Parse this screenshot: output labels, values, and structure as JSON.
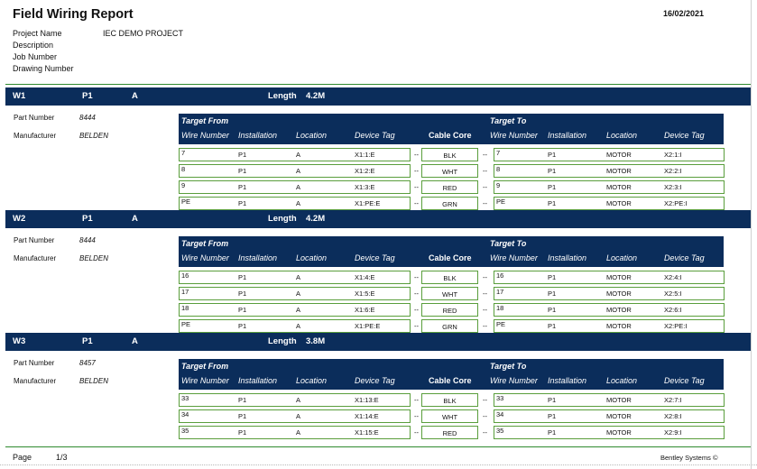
{
  "report": {
    "title": "Field Wiring Report",
    "date": "16/02/2021"
  },
  "meta": [
    {
      "label": "Project Name",
      "value": "IEC DEMO PROJECT"
    },
    {
      "label": "Description",
      "value": ""
    },
    {
      "label": "Job Number",
      "value": ""
    },
    {
      "label": "Drawing Number",
      "value": ""
    }
  ],
  "labels": {
    "part_number": "Part Number",
    "manufacturer": "Manufacturer",
    "length": "Length",
    "target_from": "Target From",
    "target_to": "Target To",
    "wire_number": "Wire Number",
    "installation": "Installation",
    "location": "Location",
    "device_tag": "Device Tag",
    "cable_core": "Cable Core",
    "separator": "--"
  },
  "sections": [
    {
      "wire": "W1",
      "installation": "P1",
      "location": "A",
      "length": "4.2M",
      "part_number": "8444",
      "manufacturer": "BELDEN",
      "rows": [
        {
          "from_wire": "7",
          "from_inst": "P1",
          "from_loc": "A",
          "from_tag": "X1:1:E",
          "core": "BLK",
          "to_wire": "7",
          "to_inst": "P1",
          "to_loc": "MOTOR",
          "to_tag": "X2:1:I"
        },
        {
          "from_wire": "8",
          "from_inst": "P1",
          "from_loc": "A",
          "from_tag": "X1:2:E",
          "core": "WHT",
          "to_wire": "8",
          "to_inst": "P1",
          "to_loc": "MOTOR",
          "to_tag": "X2:2:I"
        },
        {
          "from_wire": "9",
          "from_inst": "P1",
          "from_loc": "A",
          "from_tag": "X1:3:E",
          "core": "RED",
          "to_wire": "9",
          "to_inst": "P1",
          "to_loc": "MOTOR",
          "to_tag": "X2:3:I"
        },
        {
          "from_wire": "PE",
          "from_inst": "P1",
          "from_loc": "A",
          "from_tag": "X1:PE:E",
          "core": "GRN",
          "to_wire": "PE",
          "to_inst": "P1",
          "to_loc": "MOTOR",
          "to_tag": "X2:PE:I"
        }
      ]
    },
    {
      "wire": "W2",
      "installation": "P1",
      "location": "A",
      "length": "4.2M",
      "part_number": "8444",
      "manufacturer": "BELDEN",
      "rows": [
        {
          "from_wire": "16",
          "from_inst": "P1",
          "from_loc": "A",
          "from_tag": "X1:4:E",
          "core": "BLK",
          "to_wire": "16",
          "to_inst": "P1",
          "to_loc": "MOTOR",
          "to_tag": "X2:4:I"
        },
        {
          "from_wire": "17",
          "from_inst": "P1",
          "from_loc": "A",
          "from_tag": "X1:5:E",
          "core": "WHT",
          "to_wire": "17",
          "to_inst": "P1",
          "to_loc": "MOTOR",
          "to_tag": "X2:5:I"
        },
        {
          "from_wire": "18",
          "from_inst": "P1",
          "from_loc": "A",
          "from_tag": "X1:6:E",
          "core": "RED",
          "to_wire": "18",
          "to_inst": "P1",
          "to_loc": "MOTOR",
          "to_tag": "X2:6:I"
        },
        {
          "from_wire": "PE",
          "from_inst": "P1",
          "from_loc": "A",
          "from_tag": "X1:PE:E",
          "core": "GRN",
          "to_wire": "PE",
          "to_inst": "P1",
          "to_loc": "MOTOR",
          "to_tag": "X2:PE:I"
        }
      ]
    },
    {
      "wire": "W3",
      "installation": "P1",
      "location": "A",
      "length": "3.8M",
      "part_number": "8457",
      "manufacturer": "BELDEN",
      "rows": [
        {
          "from_wire": "33",
          "from_inst": "P1",
          "from_loc": "A",
          "from_tag": "X1:13:E",
          "core": "BLK",
          "to_wire": "33",
          "to_inst": "P1",
          "to_loc": "MOTOR",
          "to_tag": "X2:7:I"
        },
        {
          "from_wire": "34",
          "from_inst": "P1",
          "from_loc": "A",
          "from_tag": "X1:14:E",
          "core": "WHT",
          "to_wire": "34",
          "to_inst": "P1",
          "to_loc": "MOTOR",
          "to_tag": "X2:8:I"
        },
        {
          "from_wire": "35",
          "from_inst": "P1",
          "from_loc": "A",
          "from_tag": "X1:15:E",
          "core": "RED",
          "to_wire": "35",
          "to_inst": "P1",
          "to_loc": "MOTOR",
          "to_tag": "X2:9:I"
        }
      ]
    }
  ],
  "footer": {
    "page_label": "Page",
    "page_number": "1/3",
    "brand": "Bentley Systems ©"
  }
}
